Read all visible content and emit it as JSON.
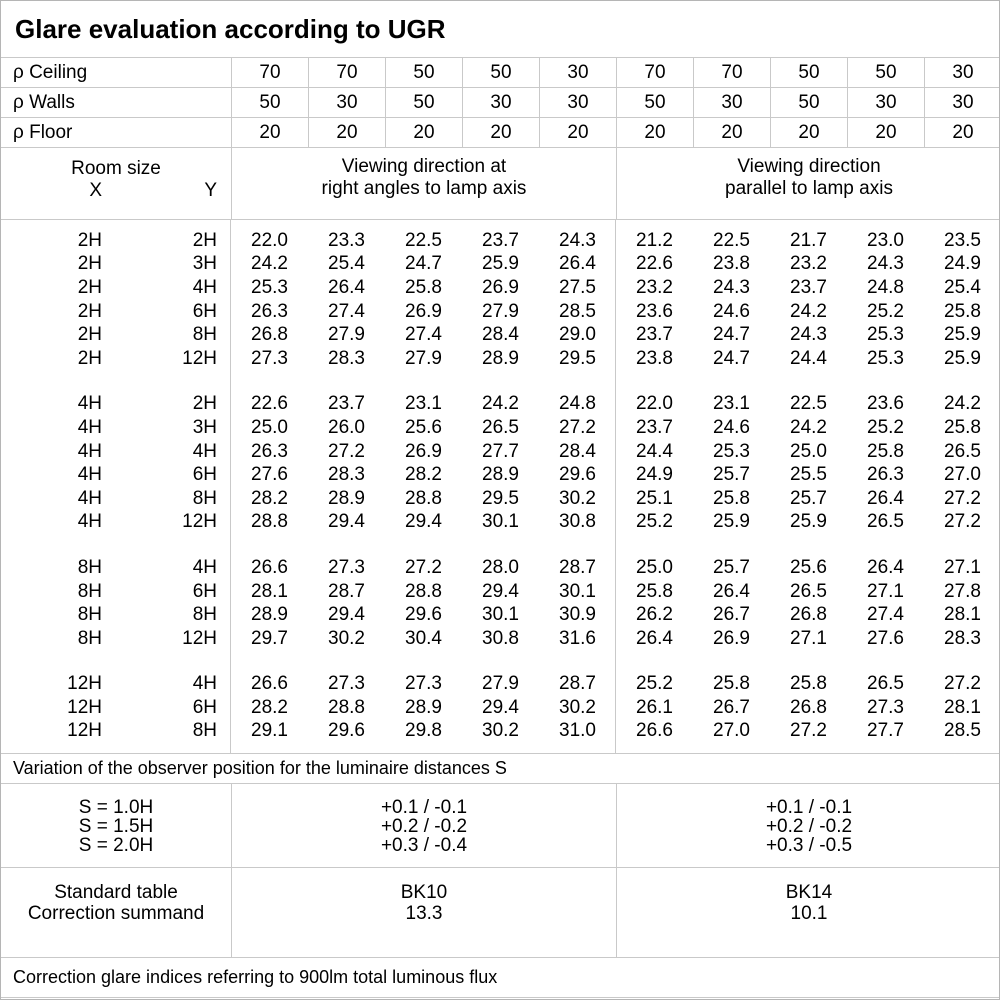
{
  "title": "Glare evaluation according to UGR",
  "header": {
    "reflectance_rows": [
      {
        "label": "ρ Ceiling",
        "values": [
          "70",
          "70",
          "50",
          "50",
          "30",
          "70",
          "70",
          "50",
          "50",
          "30"
        ]
      },
      {
        "label": "ρ Walls",
        "values": [
          "50",
          "30",
          "50",
          "30",
          "30",
          "50",
          "30",
          "50",
          "30",
          "30"
        ]
      },
      {
        "label": "ρ Floor",
        "values": [
          "20",
          "20",
          "20",
          "20",
          "20",
          "20",
          "20",
          "20",
          "20",
          "20"
        ]
      }
    ],
    "room_size": {
      "title": "Room size",
      "x": "X",
      "y": "Y"
    },
    "viewing_right_angles": [
      "Viewing direction at",
      "right angles to lamp axis"
    ],
    "viewing_parallel": [
      "Viewing direction",
      "parallel to lamp axis"
    ]
  },
  "ugr_blocks": [
    {
      "rows": [
        {
          "x": "2H",
          "y": "2H",
          "right_angles": [
            "22.0",
            "23.3",
            "22.5",
            "23.7",
            "24.3"
          ],
          "parallel": [
            "21.2",
            "22.5",
            "21.7",
            "23.0",
            "23.5"
          ]
        },
        {
          "x": "2H",
          "y": "3H",
          "right_angles": [
            "24.2",
            "25.4",
            "24.7",
            "25.9",
            "26.4"
          ],
          "parallel": [
            "22.6",
            "23.8",
            "23.2",
            "24.3",
            "24.9"
          ]
        },
        {
          "x": "2H",
          "y": "4H",
          "right_angles": [
            "25.3",
            "26.4",
            "25.8",
            "26.9",
            "27.5"
          ],
          "parallel": [
            "23.2",
            "24.3",
            "23.7",
            "24.8",
            "25.4"
          ]
        },
        {
          "x": "2H",
          "y": "6H",
          "right_angles": [
            "26.3",
            "27.4",
            "26.9",
            "27.9",
            "28.5"
          ],
          "parallel": [
            "23.6",
            "24.6",
            "24.2",
            "25.2",
            "25.8"
          ]
        },
        {
          "x": "2H",
          "y": "8H",
          "right_angles": [
            "26.8",
            "27.9",
            "27.4",
            "28.4",
            "29.0"
          ],
          "parallel": [
            "23.7",
            "24.7",
            "24.3",
            "25.3",
            "25.9"
          ]
        },
        {
          "x": "2H",
          "y": "12H",
          "right_angles": [
            "27.3",
            "28.3",
            "27.9",
            "28.9",
            "29.5"
          ],
          "parallel": [
            "23.8",
            "24.7",
            "24.4",
            "25.3",
            "25.9"
          ]
        }
      ]
    },
    {
      "rows": [
        {
          "x": "4H",
          "y": "2H",
          "right_angles": [
            "22.6",
            "23.7",
            "23.1",
            "24.2",
            "24.8"
          ],
          "parallel": [
            "22.0",
            "23.1",
            "22.5",
            "23.6",
            "24.2"
          ]
        },
        {
          "x": "4H",
          "y": "3H",
          "right_angles": [
            "25.0",
            "26.0",
            "25.6",
            "26.5",
            "27.2"
          ],
          "parallel": [
            "23.7",
            "24.6",
            "24.2",
            "25.2",
            "25.8"
          ]
        },
        {
          "x": "4H",
          "y": "4H",
          "right_angles": [
            "26.3",
            "27.2",
            "26.9",
            "27.7",
            "28.4"
          ],
          "parallel": [
            "24.4",
            "25.3",
            "25.0",
            "25.8",
            "26.5"
          ]
        },
        {
          "x": "4H",
          "y": "6H",
          "right_angles": [
            "27.6",
            "28.3",
            "28.2",
            "28.9",
            "29.6"
          ],
          "parallel": [
            "24.9",
            "25.7",
            "25.5",
            "26.3",
            "27.0"
          ]
        },
        {
          "x": "4H",
          "y": "8H",
          "right_angles": [
            "28.2",
            "28.9",
            "28.8",
            "29.5",
            "30.2"
          ],
          "parallel": [
            "25.1",
            "25.8",
            "25.7",
            "26.4",
            "27.2"
          ]
        },
        {
          "x": "4H",
          "y": "12H",
          "right_angles": [
            "28.8",
            "29.4",
            "29.4",
            "30.1",
            "30.8"
          ],
          "parallel": [
            "25.2",
            "25.9",
            "25.9",
            "26.5",
            "27.2"
          ]
        }
      ]
    },
    {
      "rows": [
        {
          "x": "8H",
          "y": "4H",
          "right_angles": [
            "26.6",
            "27.3",
            "27.2",
            "28.0",
            "28.7"
          ],
          "parallel": [
            "25.0",
            "25.7",
            "25.6",
            "26.4",
            "27.1"
          ]
        },
        {
          "x": "8H",
          "y": "6H",
          "right_angles": [
            "28.1",
            "28.7",
            "28.8",
            "29.4",
            "30.1"
          ],
          "parallel": [
            "25.8",
            "26.4",
            "26.5",
            "27.1",
            "27.8"
          ]
        },
        {
          "x": "8H",
          "y": "8H",
          "right_angles": [
            "28.9",
            "29.4",
            "29.6",
            "30.1",
            "30.9"
          ],
          "parallel": [
            "26.2",
            "26.7",
            "26.8",
            "27.4",
            "28.1"
          ]
        },
        {
          "x": "8H",
          "y": "12H",
          "right_angles": [
            "29.7",
            "30.2",
            "30.4",
            "30.8",
            "31.6"
          ],
          "parallel": [
            "26.4",
            "26.9",
            "27.1",
            "27.6",
            "28.3"
          ]
        }
      ]
    },
    {
      "rows": [
        {
          "x": "12H",
          "y": "4H",
          "right_angles": [
            "26.6",
            "27.3",
            "27.3",
            "27.9",
            "28.7"
          ],
          "parallel": [
            "25.2",
            "25.8",
            "25.8",
            "26.5",
            "27.2"
          ]
        },
        {
          "x": "12H",
          "y": "6H",
          "right_angles": [
            "28.2",
            "28.8",
            "28.9",
            "29.4",
            "30.2"
          ],
          "parallel": [
            "26.1",
            "26.7",
            "26.8",
            "27.3",
            "28.1"
          ]
        },
        {
          "x": "12H",
          "y": "8H",
          "right_angles": [
            "29.1",
            "29.6",
            "29.8",
            "30.2",
            "31.0"
          ],
          "parallel": [
            "26.6",
            "27.0",
            "27.2",
            "27.7",
            "28.5"
          ]
        }
      ]
    }
  ],
  "variation_note": "Variation of the observer position for the luminaire distances S",
  "variation_table": {
    "s_labels": [
      "S = 1.0H",
      "S = 1.5H",
      "S = 2.0H"
    ],
    "right_angles": [
      "+0.1 / -0.1",
      "+0.2 / -0.2",
      "+0.3 / -0.4"
    ],
    "parallel": [
      "+0.1 / -0.1",
      "+0.2 / -0.2",
      "+0.3 / -0.5"
    ]
  },
  "standard_table": {
    "labels": [
      "Standard table",
      "Correction summand"
    ],
    "right_angles": [
      "BK10",
      "13.3"
    ],
    "parallel": [
      "BK14",
      "10.1"
    ]
  },
  "footer_note": "Correction glare indices referring to 900lm total luminous flux",
  "colors": {
    "grid": "#c9c9c9",
    "text": "#000000",
    "background": "#ffffff"
  }
}
